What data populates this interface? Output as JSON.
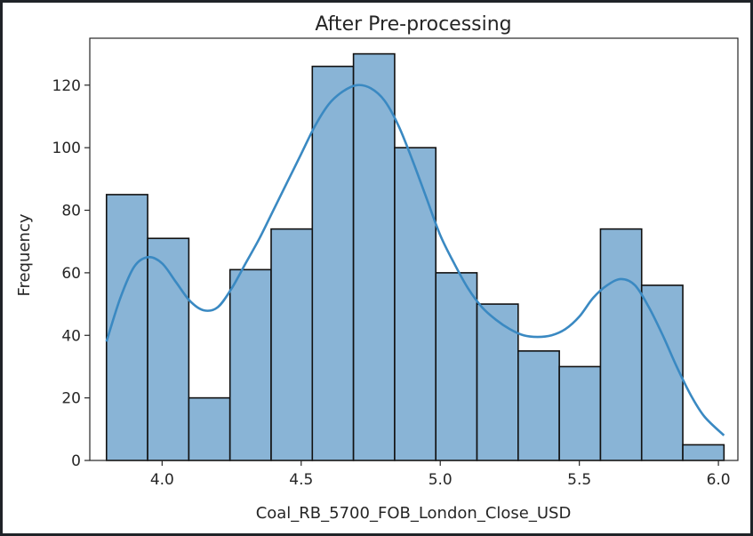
{
  "chart_data": {
    "type": "bar",
    "title": "After Pre-processing",
    "xlabel": "Coal_RB_5700_FOB_London_Close_USD",
    "ylabel": "Frequency",
    "xlim": [
      3.74,
      6.07
    ],
    "ylim": [
      0,
      135
    ],
    "bin_edges": [
      3.8,
      3.948,
      4.096,
      4.244,
      4.392,
      4.54,
      4.688,
      4.836,
      4.984,
      5.132,
      5.28,
      5.428,
      5.576,
      5.724,
      5.872,
      6.02
    ],
    "values": [
      85,
      71,
      20,
      61,
      74,
      126,
      130,
      100,
      60,
      50,
      35,
      30,
      74,
      56,
      5
    ],
    "xticks": [
      {
        "value": 4.0,
        "label": "4.0"
      },
      {
        "value": 4.5,
        "label": "4.5"
      },
      {
        "value": 5.0,
        "label": "5.0"
      },
      {
        "value": 5.5,
        "label": "5.5"
      },
      {
        "value": 6.0,
        "label": "6.0"
      }
    ],
    "yticks": [
      {
        "value": 0,
        "label": "0"
      },
      {
        "value": 20,
        "label": "20"
      },
      {
        "value": 40,
        "label": "40"
      },
      {
        "value": 60,
        "label": "60"
      },
      {
        "value": 80,
        "label": "80"
      },
      {
        "value": 100,
        "label": "100"
      },
      {
        "value": 120,
        "label": "120"
      }
    ],
    "kde_curve": {
      "x": [
        3.8,
        3.85,
        3.9,
        3.95,
        4.0,
        4.05,
        4.1,
        4.15,
        4.2,
        4.25,
        4.3,
        4.35,
        4.4,
        4.45,
        4.5,
        4.55,
        4.6,
        4.65,
        4.7,
        4.75,
        4.8,
        4.85,
        4.9,
        4.95,
        5.0,
        5.05,
        5.1,
        5.15,
        5.2,
        5.25,
        5.3,
        5.35,
        5.4,
        5.45,
        5.5,
        5.55,
        5.6,
        5.65,
        5.7,
        5.75,
        5.8,
        5.85,
        5.9,
        5.95,
        6.02
      ],
      "y": [
        38,
        52,
        62,
        65,
        63,
        57,
        51,
        48,
        49,
        55,
        63,
        71,
        80,
        89,
        98,
        107,
        114,
        118,
        120,
        119,
        115,
        107,
        96,
        84,
        72,
        63,
        55,
        49,
        45,
        42,
        40,
        39.5,
        40,
        42,
        46,
        52,
        56,
        58,
        56,
        49,
        40,
        30,
        21,
        14,
        8
      ]
    },
    "colors": {
      "bar_fill": "#89b4d6",
      "bar_edge": "#111111",
      "kde_line": "#3a89c2",
      "axis": "#262626"
    },
    "grid": false,
    "legend": "none"
  }
}
